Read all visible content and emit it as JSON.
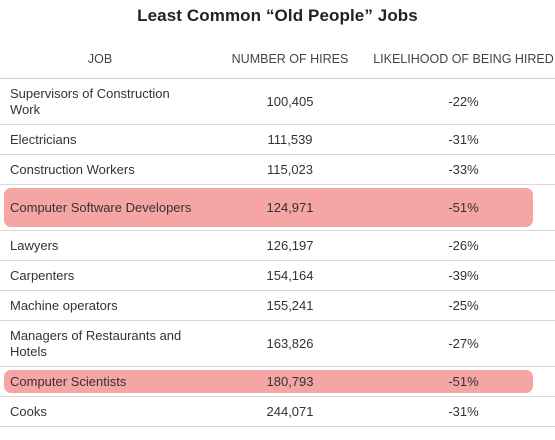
{
  "chart_data": {
    "type": "table",
    "title": "Least Common “Old People” Jobs",
    "columns": [
      "JOB",
      "NUMBER OF HIRES",
      "LIKELIHOOD OF BEING HIRED"
    ],
    "rows": [
      {
        "job": "Supervisors of Construction Work",
        "hires": "100,405",
        "likelihood": "-22%",
        "highlighted": false
      },
      {
        "job": "Electricians",
        "hires": "111,539",
        "likelihood": "-31%",
        "highlighted": false
      },
      {
        "job": "Construction Workers",
        "hires": "115,023",
        "likelihood": "-33%",
        "highlighted": false
      },
      {
        "job": "Computer Software Developers",
        "hires": "124,971",
        "likelihood": "-51%",
        "highlighted": true
      },
      {
        "job": "Lawyers",
        "hires": "126,197",
        "likelihood": "-26%",
        "highlighted": false
      },
      {
        "job": "Carpenters",
        "hires": "154,164",
        "likelihood": "-39%",
        "highlighted": false
      },
      {
        "job": "Machine operators",
        "hires": "155,241",
        "likelihood": "-25%",
        "highlighted": false
      },
      {
        "job": "Managers of Restaurants and Hotels",
        "hires": "163,826",
        "likelihood": "-27%",
        "highlighted": false
      },
      {
        "job": "Computer Scientists",
        "hires": "180,793",
        "likelihood": "-51%",
        "highlighted": true
      },
      {
        "job": "Cooks",
        "hires": "244,071",
        "likelihood": "-31%",
        "highlighted": false
      }
    ],
    "highlight_color": "#f6a5a5"
  }
}
